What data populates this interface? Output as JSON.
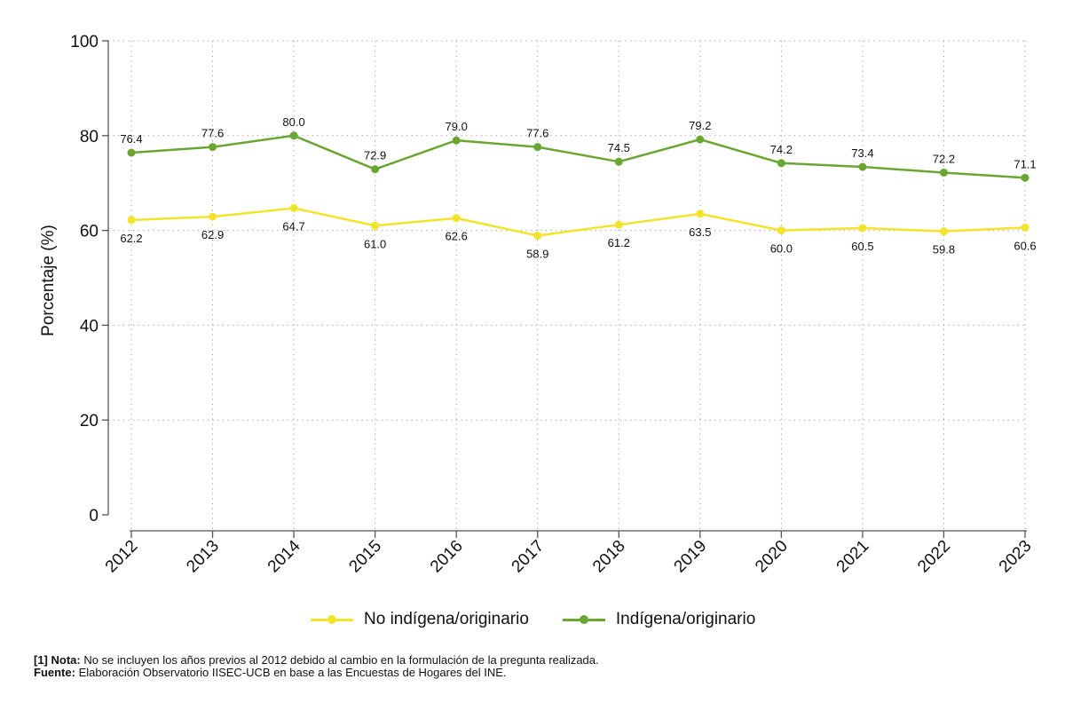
{
  "chart_data": {
    "type": "line",
    "title": "",
    "xlabel": "",
    "ylabel": "Porcentaje (%)",
    "ylim": [
      0,
      100
    ],
    "yticks": [
      0,
      20,
      40,
      60,
      80,
      100
    ],
    "grid": true,
    "legend_position": "bottom",
    "categories": [
      "2012",
      "2013",
      "2014",
      "2015",
      "2016",
      "2017",
      "2018",
      "2019",
      "2020",
      "2021",
      "2022",
      "2023"
    ],
    "series": [
      {
        "name": "No indígena/originario",
        "color": "#f2e32b",
        "values": [
          62.2,
          62.9,
          64.7,
          61.0,
          62.6,
          58.9,
          61.2,
          63.5,
          60.0,
          60.5,
          59.8,
          60.6
        ],
        "labels": [
          "62.2",
          "62.9",
          "64.7",
          "61.0",
          "62.6",
          "58.9",
          "61.2",
          "63.5",
          "60.0",
          "60.5",
          "59.8",
          "60.6"
        ],
        "label_position": "below"
      },
      {
        "name": "Indígena/originario",
        "color": "#6aa632",
        "values": [
          76.4,
          77.6,
          80.0,
          72.9,
          79.0,
          77.6,
          74.5,
          79.2,
          74.2,
          73.4,
          72.2,
          71.1
        ],
        "labels": [
          "76.4",
          "77.6",
          "80.0",
          "72.9",
          "79.0",
          "77.6",
          "74.5",
          "79.2",
          "74.2",
          "73.4",
          "72.2",
          "71.1"
        ],
        "label_position": "above"
      }
    ]
  },
  "notes": {
    "nota_label": "[1] Nota:",
    "nota_text": " No se incluyen los años previos al 2012 debido al cambio en la formulación de la pregunta realizada.",
    "fuente_label": "Fuente:",
    "fuente_text": " Elaboración Observatorio IISEC-UCB en base a las Encuestas de Hogares del INE."
  }
}
